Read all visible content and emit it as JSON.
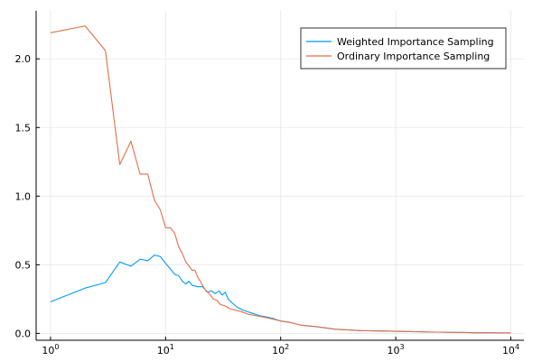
{
  "chart_data": {
    "type": "line",
    "title": "",
    "xlabel": "",
    "ylabel": "",
    "xscale": "log10",
    "xlim": [
      0.75,
      13000
    ],
    "ylim": [
      -0.05,
      2.35
    ],
    "grid": true,
    "legend_position": "top-right",
    "x_ticks": [
      {
        "value": 1,
        "base": "10",
        "exp": "0"
      },
      {
        "value": 10,
        "base": "10",
        "exp": "1"
      },
      {
        "value": 100,
        "base": "10",
        "exp": "2"
      },
      {
        "value": 1000,
        "base": "10",
        "exp": "3"
      },
      {
        "value": 10000,
        "base": "10",
        "exp": "4"
      }
    ],
    "y_ticks": [
      {
        "value": 0.0,
        "label": "0.0"
      },
      {
        "value": 0.5,
        "label": "0.5"
      },
      {
        "value": 1.0,
        "label": "1.0"
      },
      {
        "value": 1.5,
        "label": "1.5"
      },
      {
        "value": 2.0,
        "label": "2.0"
      }
    ],
    "series": [
      {
        "name": "Weighted Importance Sampling",
        "color": "#009AFA",
        "points": [
          [
            1,
            0.23
          ],
          [
            2,
            0.33
          ],
          [
            3,
            0.37
          ],
          [
            4,
            0.52
          ],
          [
            5,
            0.49
          ],
          [
            6,
            0.54
          ],
          [
            7,
            0.53
          ],
          [
            8,
            0.57
          ],
          [
            9,
            0.56
          ],
          [
            10,
            0.51
          ],
          [
            11,
            0.47
          ],
          [
            12,
            0.43
          ],
          [
            13,
            0.42
          ],
          [
            14,
            0.38
          ],
          [
            15,
            0.36
          ],
          [
            16,
            0.38
          ],
          [
            17,
            0.35
          ],
          [
            19,
            0.34
          ],
          [
            21,
            0.34
          ],
          [
            23,
            0.3
          ],
          [
            25,
            0.31
          ],
          [
            27,
            0.29
          ],
          [
            29,
            0.31
          ],
          [
            31,
            0.28
          ],
          [
            33,
            0.3
          ],
          [
            35,
            0.25
          ],
          [
            38,
            0.22
          ],
          [
            42,
            0.19
          ],
          [
            47,
            0.17
          ],
          [
            55,
            0.15
          ],
          [
            65,
            0.13
          ],
          [
            75,
            0.12
          ],
          [
            85,
            0.11
          ],
          [
            100,
            0.09
          ],
          [
            120,
            0.08
          ],
          [
            150,
            0.06
          ],
          [
            200,
            0.05
          ],
          [
            300,
            0.03
          ],
          [
            500,
            0.02
          ],
          [
            1000,
            0.015
          ],
          [
            2000,
            0.01
          ],
          [
            5000,
            0.005
          ],
          [
            10000,
            0.003
          ]
        ]
      },
      {
        "name": "Ordinary Importance Sampling",
        "color": "#E26F46",
        "points": [
          [
            1,
            2.19
          ],
          [
            2,
            2.24
          ],
          [
            3,
            2.06
          ],
          [
            4,
            1.23
          ],
          [
            5,
            1.4
          ],
          [
            6,
            1.16
          ],
          [
            7,
            1.16
          ],
          [
            8,
            0.97
          ],
          [
            9,
            0.9
          ],
          [
            10,
            0.77
          ],
          [
            11,
            0.77
          ],
          [
            12,
            0.73
          ],
          [
            13,
            0.63
          ],
          [
            14,
            0.58
          ],
          [
            15,
            0.52
          ],
          [
            16,
            0.49
          ],
          [
            17,
            0.46
          ],
          [
            18,
            0.46
          ],
          [
            19,
            0.41
          ],
          [
            20,
            0.38
          ],
          [
            22,
            0.32
          ],
          [
            24,
            0.29
          ],
          [
            26,
            0.25
          ],
          [
            28,
            0.24
          ],
          [
            30,
            0.21
          ],
          [
            33,
            0.2
          ],
          [
            36,
            0.18
          ],
          [
            40,
            0.17
          ],
          [
            45,
            0.16
          ],
          [
            52,
            0.14
          ],
          [
            60,
            0.13
          ],
          [
            70,
            0.12
          ],
          [
            80,
            0.11
          ],
          [
            100,
            0.09
          ],
          [
            120,
            0.08
          ],
          [
            150,
            0.06
          ],
          [
            200,
            0.05
          ],
          [
            300,
            0.03
          ],
          [
            500,
            0.02
          ],
          [
            1000,
            0.015
          ],
          [
            2000,
            0.01
          ],
          [
            5000,
            0.005
          ],
          [
            10000,
            0.003
          ]
        ]
      }
    ]
  }
}
